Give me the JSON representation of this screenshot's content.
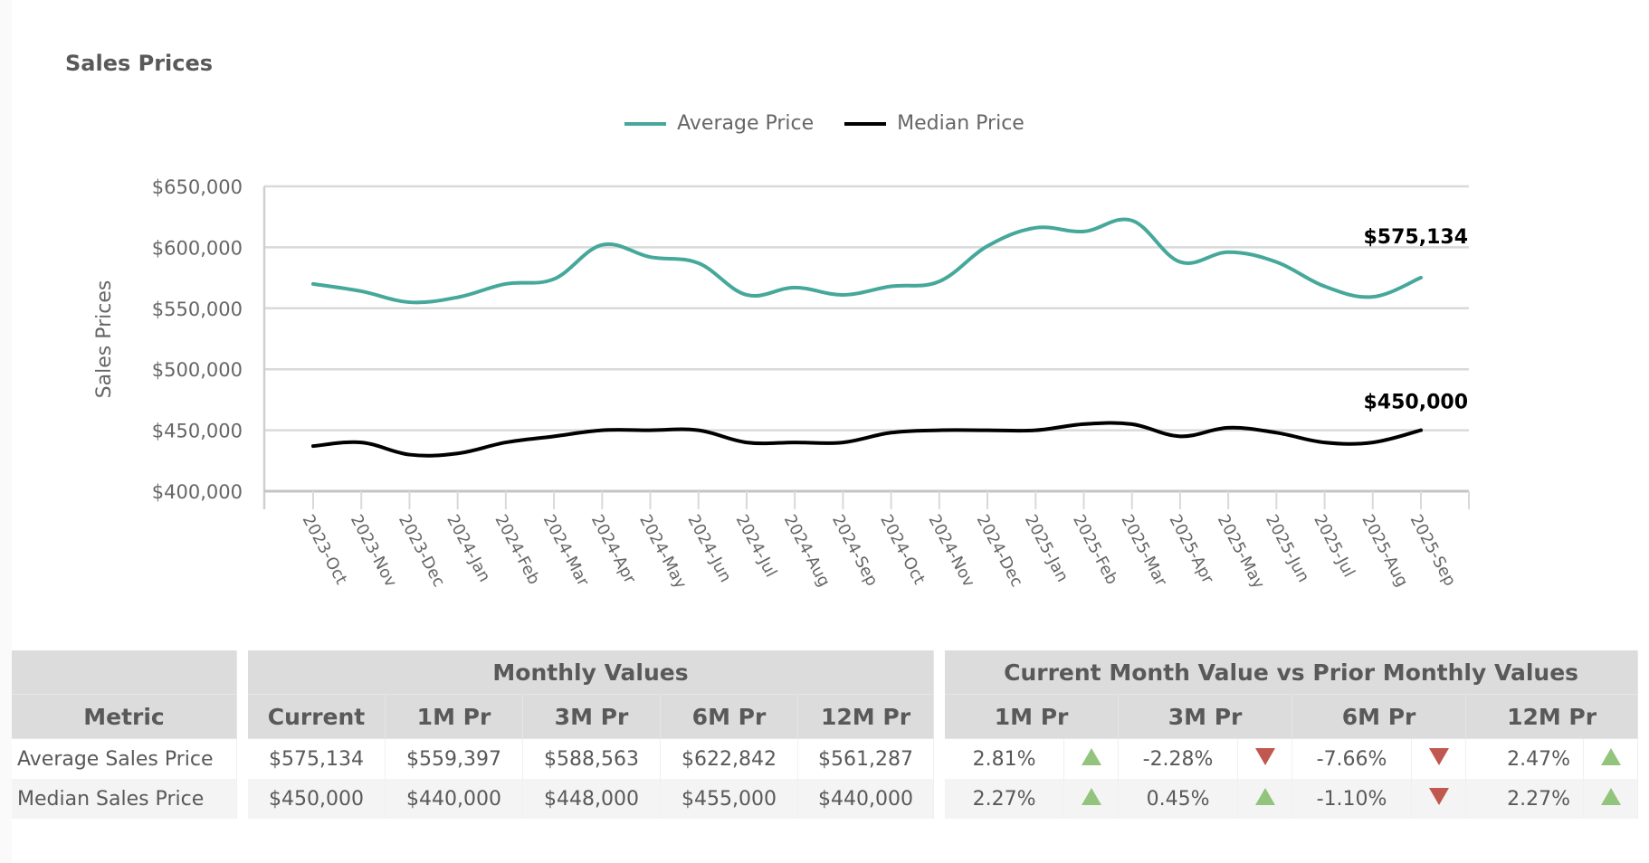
{
  "title": "Sales Prices",
  "colors": {
    "average": "#45a89a",
    "median": "#000000",
    "up": "#93c47d",
    "down": "#c0584f",
    "grid": "#d9d9d9"
  },
  "legend": [
    {
      "label": "Average Price",
      "color": "#45a89a"
    },
    {
      "label": "Median Price",
      "color": "#000000"
    }
  ],
  "chart_data": {
    "type": "line",
    "title": "Sales Prices",
    "xlabel": "",
    "ylabel": "Sales Prices",
    "ylim": [
      400000,
      650000
    ],
    "yticks": [
      400000,
      450000,
      500000,
      550000,
      600000,
      650000
    ],
    "ytick_labels": [
      "$400,000",
      "$450,000",
      "$500,000",
      "$550,000",
      "$600,000",
      "$650,000"
    ],
    "grid": true,
    "legend_position": "top-center",
    "categories": [
      "2023-Oct",
      "2023-Nov",
      "2023-Dec",
      "2024-Jan",
      "2024-Feb",
      "2024-Mar",
      "2024-Apr",
      "2024-May",
      "2024-Jun",
      "2024-Jul",
      "2024-Aug",
      "2024-Sep",
      "2024-Oct",
      "2024-Nov",
      "2024-Dec",
      "2025-Jan",
      "2025-Feb",
      "2025-Mar",
      "2025-Apr",
      "2025-May",
      "2025-Jun",
      "2025-Jul",
      "2025-Aug",
      "2025-Sep"
    ],
    "series": [
      {
        "name": "Average Price",
        "color": "#45a89a",
        "values": [
          570000,
          564000,
          555000,
          559000,
          570000,
          574000,
          602000,
          592000,
          587000,
          561000,
          567000,
          561000,
          568000,
          572000,
          601000,
          616000,
          613000,
          622000,
          588000,
          596000,
          588000,
          568000,
          559397,
          575134
        ],
        "end_label": "$575,134"
      },
      {
        "name": "Median Price",
        "color": "#000000",
        "values": [
          437000,
          440000,
          430000,
          431000,
          440000,
          445000,
          450000,
          450000,
          450000,
          440000,
          440000,
          440000,
          448000,
          450000,
          450000,
          450000,
          455000,
          455000,
          445000,
          452000,
          448000,
          440000,
          440000,
          450000
        ],
        "end_label": "$450,000"
      }
    ]
  },
  "table": {
    "metric_header": "Metric",
    "group_monthly": "Monthly Values",
    "group_compare": "Current Month Value vs Prior Monthly Values",
    "monthly_columns": [
      "Current",
      "1M Pr",
      "3M Pr",
      "6M Pr",
      "12M Pr"
    ],
    "compare_columns": [
      "1M Pr",
      "3M Pr",
      "6M Pr",
      "12M Pr"
    ],
    "rows": [
      {
        "metric": "Average Sales Price",
        "monthly": [
          "$575,134",
          "$559,397",
          "$588,563",
          "$622,842",
          "$561,287"
        ],
        "compare": [
          {
            "value": "2.81%",
            "trend": "up"
          },
          {
            "value": "-2.28%",
            "trend": "down"
          },
          {
            "value": "-7.66%",
            "trend": "down"
          },
          {
            "value": "2.47%",
            "trend": "up"
          }
        ]
      },
      {
        "metric": "Median Sales Price",
        "monthly": [
          "$450,000",
          "$440,000",
          "$448,000",
          "$455,000",
          "$440,000"
        ],
        "compare": [
          {
            "value": "2.27%",
            "trend": "up"
          },
          {
            "value": "0.45%",
            "trend": "up"
          },
          {
            "value": "-1.10%",
            "trend": "down"
          },
          {
            "value": "2.27%",
            "trend": "up"
          }
        ]
      }
    ]
  }
}
